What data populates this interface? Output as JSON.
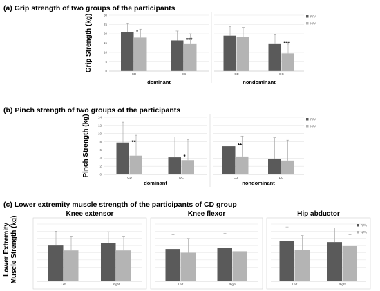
{
  "colors": {
    "rpa": "#5a5a5a",
    "npa": "#b4b4b4",
    "grid": "#e3e3e3",
    "err": "#9a9a9a",
    "panel_border": "#d0d0d0"
  },
  "chart_data": [
    {
      "type": "bar",
      "title": "(a) Grip strength of two groups of the participants",
      "ylabel": "Grip Strength (kg)",
      "ylim": [
        0,
        30
      ],
      "yticks": [
        "0",
        "5",
        "10",
        "15",
        "20",
        "25",
        "30"
      ],
      "grid": true,
      "legend_position": "right",
      "series": [
        {
          "name": "RPA"
        },
        {
          "name": "NPA"
        }
      ],
      "groups": [
        {
          "label": "dominant",
          "categories": [
            {
              "label": "CD",
              "values": [
                21,
                18
              ],
              "errors": [
                4.5,
                4.5
              ],
              "sig": "*"
            },
            {
              "label": "DC",
              "values": [
                16.5,
                14.5
              ],
              "errors": [
                5,
                5.5
              ],
              "sig": "***"
            }
          ]
        },
        {
          "label": "nondominant",
          "categories": [
            {
              "label": "CD",
              "values": [
                19,
                18.5
              ],
              "errors": [
                5,
                5
              ],
              "sig": ""
            },
            {
              "label": "DC",
              "values": [
                14.5,
                9.5
              ],
              "errors": [
                5,
                5
              ],
              "sig": "***"
            }
          ]
        }
      ]
    },
    {
      "type": "bar",
      "title": "(b) Pinch strength of two groups of the participants",
      "ylabel": "Pinch Strength (kg)",
      "ylim": [
        0,
        14
      ],
      "yticks": [
        "0",
        "2",
        "4",
        "6",
        "8",
        "10",
        "12",
        "14"
      ],
      "grid": true,
      "legend_position": "right",
      "series": [
        {
          "name": "RPA"
        },
        {
          "name": "NPA"
        }
      ],
      "groups": [
        {
          "label": "dominant",
          "categories": [
            {
              "label": "CD",
              "values": [
                7.8,
                4.6
              ],
              "errors": [
                5,
                5
              ],
              "sig": "**"
            },
            {
              "label": "DC",
              "values": [
                4.2,
                3.5
              ],
              "errors": [
                5,
                5
              ],
              "sig": "*"
            }
          ]
        },
        {
          "label": "nondominant",
          "categories": [
            {
              "label": "CD",
              "values": [
                6.9,
                4.4
              ],
              "errors": [
                5,
                5
              ],
              "sig": "**"
            },
            {
              "label": "DC",
              "values": [
                3.8,
                3.4
              ],
              "errors": [
                5.2,
                5
              ],
              "sig": ""
            }
          ]
        }
      ]
    },
    {
      "type": "bar",
      "title": "(c) Lower extremity muscle strength of the participants of CD group",
      "ylabel_lines": [
        "Lower Extremity",
        "Muscle Strength (kg)"
      ],
      "ylim": [
        0,
        20
      ],
      "grid": true,
      "legend_position": "right",
      "series": [
        {
          "name": "RPA"
        },
        {
          "name": "NPA"
        }
      ],
      "panels": [
        {
          "title": "Knee extensor",
          "categories": [
            {
              "label": "Left",
              "values": [
                12.5,
                10.8
              ],
              "errors": [
                5,
                5
              ]
            },
            {
              "label": "Right",
              "values": [
                13.3,
                10.8
              ],
              "errors": [
                4,
                5
              ]
            }
          ]
        },
        {
          "title": "Knee flexor",
          "categories": [
            {
              "label": "Left",
              "values": [
                11.3,
                10
              ],
              "errors": [
                5,
                5
              ]
            },
            {
              "label": "Right",
              "values": [
                11.8,
                10.5
              ],
              "errors": [
                5,
                5
              ]
            }
          ]
        },
        {
          "title": "Hip abductor",
          "categories": [
            {
              "label": "Left",
              "values": [
                14,
                11
              ],
              "errors": [
                5,
                5
              ]
            },
            {
              "label": "Right",
              "values": [
                13.7,
                12.3
              ],
              "errors": [
                5,
                4
              ]
            }
          ]
        }
      ]
    }
  ]
}
